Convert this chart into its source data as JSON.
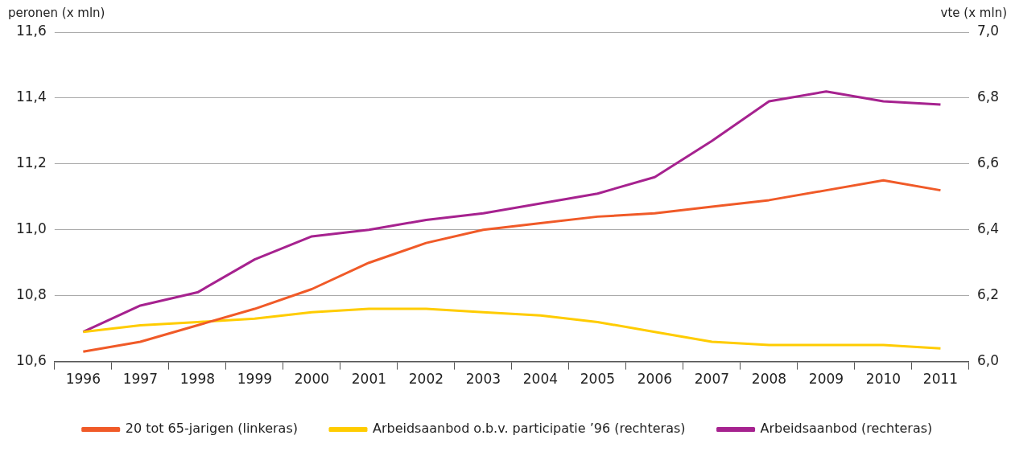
{
  "chart_data": {
    "type": "line",
    "ylabel": "peronen (x mln)",
    "y2label": "vte (x mln)",
    "categories": [
      "1996",
      "1997",
      "1998",
      "1999",
      "2000",
      "2001",
      "2002",
      "2003",
      "2004",
      "2005",
      "2006",
      "2007",
      "2008",
      "2009",
      "2010",
      "2011"
    ],
    "series": [
      {
        "name": "20 tot 65-jarigen (linkeras)",
        "color": "#f05a28",
        "axis": "y",
        "values": [
          10.63,
          10.66,
          10.71,
          10.76,
          10.82,
          10.9,
          10.96,
          11.0,
          11.02,
          11.04,
          11.05,
          11.07,
          11.09,
          11.12,
          11.15,
          11.12
        ]
      },
      {
        "name": "Arbeidsaanbod o.b.v. participatie ’96 (rechteras)",
        "color": "#ffcc00",
        "axis": "y2",
        "values": [
          6.09,
          6.11,
          6.12,
          6.13,
          6.15,
          6.16,
          6.16,
          6.15,
          6.14,
          6.12,
          6.09,
          6.06,
          6.05,
          6.05,
          6.05,
          6.04
        ]
      },
      {
        "name": "Arbeidsaanbod (rechteras)",
        "color": "#a6228f",
        "axis": "y2",
        "values": [
          6.09,
          6.17,
          6.21,
          6.31,
          6.38,
          6.4,
          6.43,
          6.45,
          6.48,
          6.51,
          6.56,
          6.67,
          6.79,
          6.82,
          6.79,
          6.78
        ]
      }
    ],
    "ylim": [
      10.6,
      11.6
    ],
    "yticks": [
      {
        "value": 10.6,
        "label": "10,6"
      },
      {
        "value": 10.8,
        "label": "10,8"
      },
      {
        "value": 11.0,
        "label": "11,0"
      },
      {
        "value": 11.2,
        "label": "11,2"
      },
      {
        "value": 11.4,
        "label": "11,4"
      },
      {
        "value": 11.6,
        "label": "11,6"
      }
    ],
    "y2lim": [
      6.0,
      7.0
    ],
    "y2ticks": [
      {
        "value": 6.0,
        "label": "6,0"
      },
      {
        "value": 6.2,
        "label": "6,2"
      },
      {
        "value": 6.4,
        "label": "6,4"
      },
      {
        "value": 6.6,
        "label": "6,6"
      },
      {
        "value": 6.8,
        "label": "6,8"
      },
      {
        "value": 7.0,
        "label": "7,0"
      }
    ],
    "grid": "y",
    "legend": "bottom",
    "marker": "none",
    "line_style": "solid"
  }
}
